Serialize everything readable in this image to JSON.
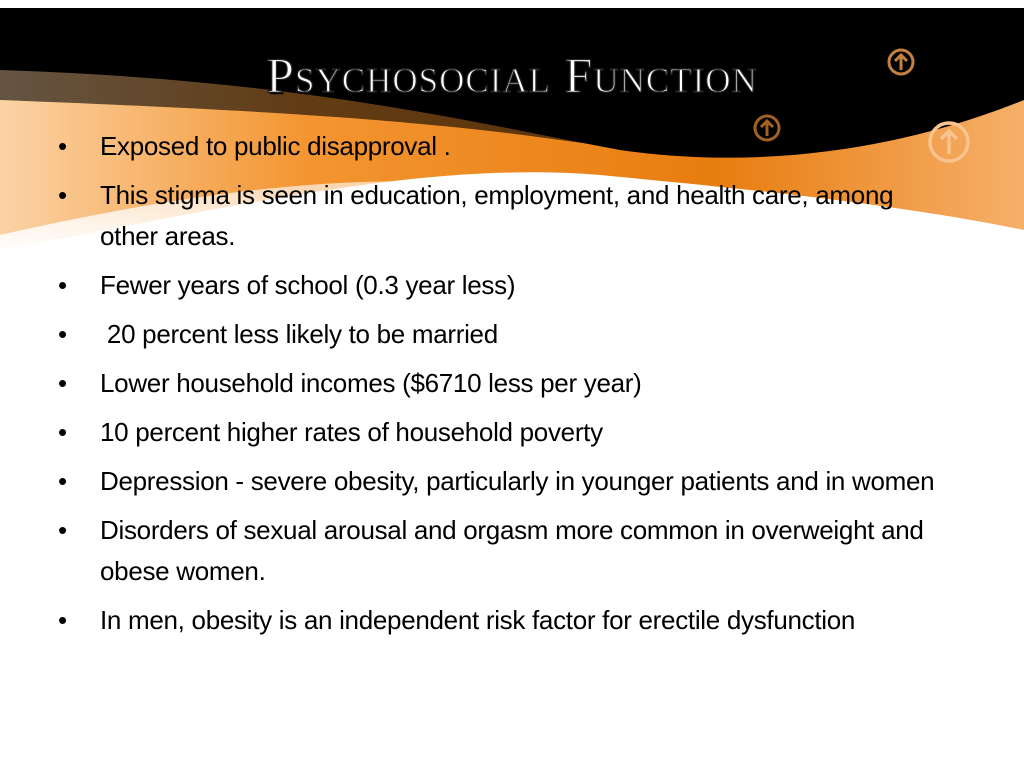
{
  "slide": {
    "title": "Psychosocial Function",
    "colors": {
      "accent": "#f08a1c",
      "header_dark": "#000000"
    },
    "decorative_icons": [
      "arrow-up-circle-icon",
      "arrow-up-circle-icon",
      "arrow-up-circle-icon"
    ],
    "bullet_glyph": "•",
    "bullets": [
      "Exposed to public disapproval .",
      "This stigma is seen in education, employment, and health care, among other areas.",
      "Fewer years of school (0.3 year less)",
      " 20 percent less likely to be married",
      "Lower household incomes ($6710 less per year)",
      "10 percent higher rates of household poverty",
      "Depression - severe obesity, particularly in younger patients and in women",
      "Disorders of sexual arousal and orgasm more common in overweight and obese women.",
      "In men, obesity is an independent risk factor for erectile dysfunction"
    ]
  }
}
